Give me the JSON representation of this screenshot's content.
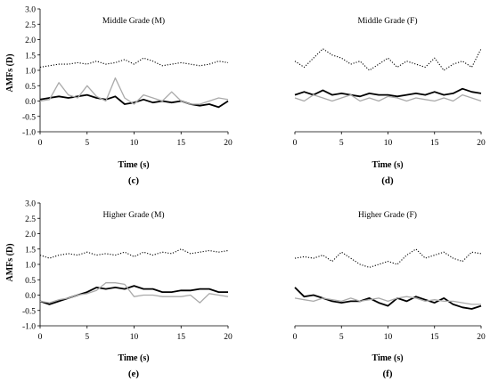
{
  "figure": {
    "y_axis_title": "AMFs (D)",
    "x_axis_title": "Time (s)",
    "series_styles": [
      {
        "key": "dotted",
        "color": "#000000",
        "stroke": "dotted"
      },
      {
        "key": "black",
        "color": "#000000",
        "stroke": "solid-thick"
      },
      {
        "key": "gray",
        "color": "#aaaaaa",
        "stroke": "solid"
      }
    ]
  },
  "chart_data": [
    {
      "type": "line",
      "title": "Middle Grade (M)",
      "panel_label": "(c)",
      "xlabel": "Time (s)",
      "ylabel": "AMFs (D)",
      "xlim": [
        0,
        20
      ],
      "ylim": [
        -1.0,
        3.0
      ],
      "x_ticks": [
        "0",
        "5",
        "10",
        "15",
        "20"
      ],
      "y_ticks": [
        "3.0",
        "2.5",
        "2.0",
        "1.5",
        "1.0",
        "0.5",
        "0.0",
        "-0.5",
        "-1.0"
      ],
      "show_y_axis": true,
      "x": [
        0,
        1,
        2,
        3,
        4,
        5,
        6,
        7,
        8,
        9,
        10,
        11,
        12,
        13,
        14,
        15,
        16,
        17,
        18,
        19,
        20
      ],
      "series": [
        {
          "style": "dotted",
          "values": [
            1.1,
            1.15,
            1.2,
            1.2,
            1.25,
            1.2,
            1.3,
            1.2,
            1.25,
            1.35,
            1.2,
            1.4,
            1.3,
            1.15,
            1.2,
            1.25,
            1.2,
            1.15,
            1.2,
            1.3,
            1.25
          ]
        },
        {
          "style": "black",
          "values": [
            0.05,
            0.1,
            0.15,
            0.1,
            0.15,
            0.2,
            0.1,
            0.05,
            0.15,
            -0.1,
            -0.05,
            0.05,
            -0.05,
            0.0,
            -0.05,
            0.0,
            -0.1,
            -0.15,
            -0.1,
            -0.2,
            0.0
          ]
        },
        {
          "style": "gray",
          "values": [
            0.0,
            0.05,
            0.6,
            0.2,
            0.1,
            0.5,
            0.15,
            0.0,
            0.75,
            0.1,
            -0.1,
            0.2,
            0.1,
            0.0,
            0.3,
            0.0,
            -0.1,
            -0.1,
            0.0,
            0.1,
            0.05
          ]
        }
      ]
    },
    {
      "type": "line",
      "title": "Middle Grade (F)",
      "panel_label": "(d)",
      "xlabel": "Time (s)",
      "ylabel": "",
      "xlim": [
        0,
        20
      ],
      "ylim": [
        -1.0,
        3.0
      ],
      "x_ticks": [
        "0",
        "5",
        "10",
        "15",
        "20"
      ],
      "y_ticks": [],
      "show_y_axis": false,
      "x": [
        0,
        1,
        2,
        3,
        4,
        5,
        6,
        7,
        8,
        9,
        10,
        11,
        12,
        13,
        14,
        15,
        16,
        17,
        18,
        19,
        20
      ],
      "series": [
        {
          "style": "dotted",
          "values": [
            1.3,
            1.1,
            1.4,
            1.7,
            1.5,
            1.4,
            1.2,
            1.3,
            1.0,
            1.2,
            1.4,
            1.1,
            1.3,
            1.2,
            1.1,
            1.4,
            1.0,
            1.2,
            1.3,
            1.1,
            1.7
          ]
        },
        {
          "style": "black",
          "values": [
            0.2,
            0.3,
            0.2,
            0.35,
            0.2,
            0.25,
            0.2,
            0.15,
            0.25,
            0.2,
            0.2,
            0.15,
            0.2,
            0.25,
            0.2,
            0.3,
            0.2,
            0.25,
            0.4,
            0.3,
            0.25
          ]
        },
        {
          "style": "gray",
          "values": [
            0.1,
            0.0,
            0.2,
            0.1,
            0.0,
            0.1,
            0.2,
            0.0,
            0.1,
            0.0,
            0.15,
            0.1,
            0.0,
            0.1,
            0.05,
            0.0,
            0.1,
            0.0,
            0.2,
            0.1,
            0.0
          ]
        }
      ]
    },
    {
      "type": "line",
      "title": "Higher Grade (M)",
      "panel_label": "(e)",
      "xlabel": "Time (s)",
      "ylabel": "AMFs (D)",
      "xlim": [
        0,
        20
      ],
      "ylim": [
        -1.0,
        3.0
      ],
      "x_ticks": [
        "0",
        "5",
        "10",
        "15",
        "20"
      ],
      "y_ticks": [
        "3.0",
        "2.5",
        "2.0",
        "1.5",
        "1.0",
        "0.5",
        "0.0",
        "-0.5",
        "-1.0"
      ],
      "show_y_axis": true,
      "x": [
        0,
        1,
        2,
        3,
        4,
        5,
        6,
        7,
        8,
        9,
        10,
        11,
        12,
        13,
        14,
        15,
        16,
        17,
        18,
        19,
        20
      ],
      "series": [
        {
          "style": "dotted",
          "values": [
            1.3,
            1.2,
            1.3,
            1.35,
            1.3,
            1.4,
            1.3,
            1.35,
            1.3,
            1.4,
            1.25,
            1.4,
            1.3,
            1.4,
            1.35,
            1.5,
            1.35,
            1.4,
            1.45,
            1.4,
            1.45
          ]
        },
        {
          "style": "black",
          "values": [
            -0.2,
            -0.3,
            -0.2,
            -0.1,
            0.0,
            0.1,
            0.25,
            0.2,
            0.25,
            0.2,
            0.3,
            0.2,
            0.2,
            0.1,
            0.1,
            0.15,
            0.15,
            0.2,
            0.2,
            0.1,
            0.1
          ]
        },
        {
          "style": "gray",
          "values": [
            -0.2,
            -0.25,
            -0.15,
            -0.1,
            0.0,
            0.05,
            0.15,
            0.4,
            0.4,
            0.35,
            -0.05,
            0.0,
            0.0,
            -0.05,
            -0.05,
            -0.05,
            0.0,
            -0.25,
            0.05,
            0.0,
            -0.05
          ]
        }
      ]
    },
    {
      "type": "line",
      "title": "Higher Grade (F)",
      "panel_label": "(f)",
      "xlabel": "Time (s)",
      "ylabel": "",
      "xlim": [
        0,
        20
      ],
      "ylim": [
        -1.0,
        3.0
      ],
      "x_ticks": [
        "0",
        "5",
        "10",
        "15",
        "20"
      ],
      "y_ticks": [],
      "show_y_axis": false,
      "x": [
        0,
        1,
        2,
        3,
        4,
        5,
        6,
        7,
        8,
        9,
        10,
        11,
        12,
        13,
        14,
        15,
        16,
        17,
        18,
        19,
        20
      ],
      "series": [
        {
          "style": "dotted",
          "values": [
            1.2,
            1.25,
            1.2,
            1.3,
            1.1,
            1.4,
            1.2,
            1.0,
            0.9,
            1.0,
            1.1,
            1.0,
            1.3,
            1.5,
            1.2,
            1.3,
            1.4,
            1.2,
            1.1,
            1.4,
            1.35
          ]
        },
        {
          "style": "black",
          "values": [
            0.25,
            -0.05,
            0.0,
            -0.1,
            -0.2,
            -0.25,
            -0.2,
            -0.2,
            -0.1,
            -0.25,
            -0.35,
            -0.1,
            -0.2,
            -0.05,
            -0.15,
            -0.25,
            -0.1,
            -0.3,
            -0.4,
            -0.45,
            -0.35
          ]
        },
        {
          "style": "gray",
          "values": [
            -0.1,
            -0.15,
            -0.2,
            -0.1,
            -0.15,
            -0.2,
            -0.1,
            -0.2,
            -0.15,
            -0.1,
            -0.2,
            -0.1,
            -0.05,
            -0.1,
            -0.2,
            -0.15,
            -0.2,
            -0.2,
            -0.25,
            -0.3,
            -0.3
          ]
        }
      ]
    }
  ]
}
